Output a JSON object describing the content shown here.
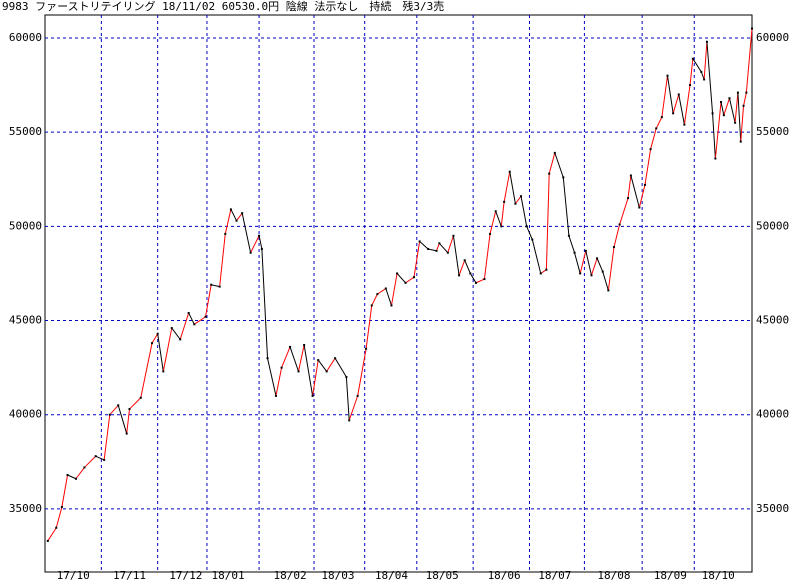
{
  "chart_data": {
    "type": "line",
    "title": "9983 ファーストリテイリング 18/11/02 60530.0円 陰線 法示なし　持続　残3/3売",
    "x": [
      0,
      3,
      5,
      7,
      10,
      13,
      17,
      20,
      22,
      25,
      28,
      29,
      33,
      37,
      39,
      41,
      44,
      47,
      50,
      52,
      56,
      58,
      61,
      63,
      65,
      67,
      69,
      72,
      75,
      76,
      78,
      81,
      83,
      86,
      89,
      91,
      94,
      96,
      99,
      102,
      106,
      107,
      110,
      113,
      115,
      117,
      120,
      122,
      124,
      127,
      130,
      132,
      135,
      138,
      139,
      142,
      144,
      146,
      148,
      150,
      152,
      155,
      157,
      159,
      161,
      162,
      164,
      166,
      168,
      170,
      172,
      175,
      177,
      178,
      180,
      183,
      185,
      187,
      189,
      191,
      193,
      195,
      197,
      199,
      201,
      203,
      206,
      207,
      210,
      212,
      214,
      216,
      218,
      220,
      222,
      224,
      226,
      228,
      229,
      232,
      233,
      234,
      236,
      237,
      239,
      240,
      242,
      244,
      245,
      246,
      247,
      248,
      250
    ],
    "values": [
      33300,
      34000,
      35100,
      36800,
      36600,
      37200,
      37800,
      37600,
      40000,
      40500,
      39000,
      40300,
      40900,
      43800,
      44300,
      42300,
      44600,
      44000,
      45400,
      44800,
      45200,
      46900,
      46800,
      49600,
      50900,
      50300,
      50700,
      48600,
      49500,
      48800,
      43000,
      41000,
      42500,
      43600,
      42300,
      43700,
      41000,
      42900,
      42300,
      43000,
      42000,
      39700,
      41000,
      43500,
      45800,
      46400,
      46700,
      45800,
      47500,
      47000,
      47300,
      49200,
      48800,
      48700,
      49100,
      48600,
      49500,
      47400,
      48200,
      47500,
      47000,
      47200,
      49600,
      50800,
      50000,
      51300,
      52900,
      51200,
      51600,
      50000,
      49300,
      47500,
      47700,
      52800,
      53900,
      52600,
      49500,
      48600,
      47500,
      48700,
      47400,
      48300,
      47600,
      46600,
      48900,
      50100,
      51500,
      52700,
      51000,
      52200,
      54100,
      55200,
      55800,
      58000,
      56000,
      57000,
      55400,
      57500,
      58900,
      58200,
      57800,
      59800,
      56000,
      53600,
      56600,
      55900,
      56800,
      55500,
      57100,
      54500,
      56400,
      57100,
      60500
    ],
    "up_color": "#ff0000",
    "down_color": "#000000",
    "xlim": [
      -1,
      250
    ],
    "xticks": [
      {
        "value": 9,
        "label": "17/10"
      },
      {
        "value": 29,
        "label": "17/11"
      },
      {
        "value": 49,
        "label": "17/12"
      },
      {
        "value": 64,
        "label": "18/01"
      },
      {
        "value": 86,
        "label": "18/02"
      },
      {
        "value": 103,
        "label": "18/03"
      },
      {
        "value": 122,
        "label": "18/04"
      },
      {
        "value": 140,
        "label": "18/05"
      },
      {
        "value": 162,
        "label": "18/06"
      },
      {
        "value": 180,
        "label": "18/07"
      },
      {
        "value": 201,
        "label": "18/08"
      },
      {
        "value": 221,
        "label": "18/09"
      },
      {
        "value": 238,
        "label": "18/10"
      }
    ],
    "ylim": [
      31650,
      61220
    ],
    "yticks": [
      35000,
      40000,
      45000,
      50000,
      55000,
      60000
    ],
    "grid": true,
    "grid_color": "#0000c0"
  }
}
